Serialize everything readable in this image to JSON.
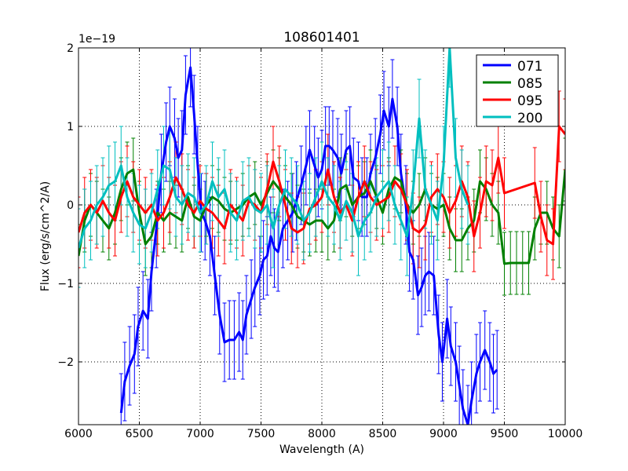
{
  "chart_data": {
    "type": "line",
    "title": "108601401",
    "xlabel": "Wavelength (A)",
    "ylabel": "Flux (erg/s/cm^2/A)",
    "offset_label": "1e−19",
    "xlim": [
      6000,
      10000
    ],
    "ylim": [
      -2.8,
      2.0
    ],
    "xticks": [
      6000,
      6500,
      7000,
      7500,
      8000,
      8500,
      9000,
      9500,
      10000
    ],
    "xtick_labels": [
      "6000",
      "6500",
      "7000",
      "7500",
      "8000",
      "8500",
      "9000",
      "9500",
      "10000"
    ],
    "yticks": [
      -2,
      -1,
      0,
      1,
      2
    ],
    "ytick_labels": [
      "−2",
      "−1",
      "0",
      "1",
      "2"
    ],
    "grid": true,
    "legend_position": "top-right",
    "series": [
      {
        "name": "071",
        "color": "#0000ff",
        "x": [
          6350,
          6380,
          6420,
          6460,
          6490,
          6530,
          6570,
          6600,
          6640,
          6680,
          6720,
          6750,
          6790,
          6820,
          6850,
          6880,
          6920,
          6950,
          6980,
          7010,
          7040,
          7080,
          7120,
          7160,
          7200,
          7240,
          7280,
          7320,
          7350,
          7380,
          7420,
          7450,
          7490,
          7520,
          7550,
          7580,
          7610,
          7640,
          7680,
          7720,
          7760,
          7790,
          7830,
          7870,
          7900,
          7940,
          7970,
          8000,
          8030,
          8060,
          8090,
          8130,
          8160,
          8200,
          8230,
          8260,
          8300,
          8330,
          8370,
          8400,
          8440,
          8480,
          8510,
          8550,
          8580,
          8620,
          8650,
          8690,
          8720,
          8750,
          8790,
          8820,
          8850,
          8880,
          8920,
          8960,
          8990,
          9030,
          9060,
          9100,
          9130,
          9160,
          9200,
          9230,
          9270,
          9300,
          9340,
          9380,
          9410,
          9440
        ],
        "y": [
          -2.65,
          -2.25,
          -2.05,
          -1.9,
          -1.55,
          -1.35,
          -1.45,
          -0.85,
          -0.3,
          0.4,
          0.8,
          1.0,
          0.85,
          0.6,
          0.7,
          1.4,
          1.75,
          1.15,
          0.5,
          -0.1,
          -0.2,
          -0.4,
          -0.9,
          -1.4,
          -1.75,
          -1.72,
          -1.72,
          -1.62,
          -1.72,
          -1.4,
          -1.2,
          -1.05,
          -0.9,
          -0.7,
          -0.65,
          -0.4,
          -0.55,
          -0.6,
          -0.3,
          -0.2,
          -0.1,
          0.05,
          0.25,
          0.5,
          0.7,
          0.5,
          0.35,
          0.45,
          0.75,
          0.75,
          0.7,
          0.6,
          0.4,
          0.7,
          0.75,
          0.35,
          0.3,
          0.1,
          0.1,
          0.4,
          0.6,
          0.9,
          1.2,
          1.0,
          1.35,
          1.0,
          0.4,
          0.0,
          -0.6,
          -0.7,
          -1.15,
          -1.05,
          -0.9,
          -0.85,
          -0.9,
          -1.65,
          -2.0,
          -1.45,
          -1.8,
          -2.0,
          -2.3,
          -2.6,
          -2.8,
          -2.5,
          -2.15,
          -2.0,
          -1.85,
          -2.0,
          -2.15,
          -2.1
        ],
        "err": 0.5
      },
      {
        "name": "085",
        "color": "#008000",
        "x": [
          6000,
          6050,
          6100,
          6150,
          6200,
          6250,
          6300,
          6350,
          6400,
          6450,
          6500,
          6550,
          6600,
          6650,
          6700,
          6750,
          6800,
          6850,
          6900,
          6950,
          7000,
          7050,
          7100,
          7150,
          7200,
          7250,
          7300,
          7350,
          7400,
          7450,
          7500,
          7550,
          7600,
          7650,
          7700,
          7750,
          7800,
          7850,
          7900,
          7950,
          8000,
          8050,
          8100,
          8150,
          8200,
          8250,
          8300,
          8350,
          8400,
          8450,
          8500,
          8550,
          8600,
          8650,
          8700,
          8750,
          8800,
          8850,
          8900,
          8950,
          9000,
          9050,
          9100,
          9150,
          9200,
          9250,
          9300,
          9350,
          9400,
          9450,
          9500,
          9550,
          9600,
          9650,
          9700,
          9750,
          9800,
          9850,
          9900,
          9950,
          10000
        ],
        "y": [
          -0.65,
          -0.2,
          0.0,
          -0.1,
          -0.2,
          -0.3,
          -0.1,
          0.2,
          0.4,
          0.45,
          -0.1,
          -0.5,
          -0.4,
          -0.1,
          -0.2,
          -0.1,
          -0.15,
          -0.2,
          0.1,
          -0.15,
          -0.2,
          0.0,
          0.1,
          0.05,
          -0.05,
          -0.1,
          -0.05,
          0.0,
          0.1,
          0.15,
          0.0,
          0.15,
          0.3,
          0.2,
          0.1,
          0.0,
          -0.15,
          -0.2,
          -0.25,
          -0.2,
          -0.2,
          -0.3,
          -0.2,
          0.2,
          0.25,
          0.0,
          0.1,
          0.15,
          0.3,
          0.1,
          -0.1,
          0.2,
          0.35,
          0.3,
          0.0,
          -0.1,
          0.0,
          0.2,
          0.0,
          -0.05,
          0.0,
          -0.3,
          -0.45,
          -0.45,
          -0.3,
          -0.2,
          0.3,
          0.2,
          0.0,
          -0.1,
          -0.75,
          -0.74,
          -0.74,
          -0.74,
          -0.74,
          -0.3,
          -0.1,
          -0.1,
          -0.3,
          -0.4,
          0.45
        ],
        "err": 0.4
      },
      {
        "name": "095",
        "color": "#ff0000",
        "x": [
          6000,
          6050,
          6100,
          6150,
          6200,
          6250,
          6300,
          6350,
          6400,
          6450,
          6500,
          6550,
          6600,
          6650,
          6700,
          6750,
          6800,
          6850,
          6900,
          6950,
          7000,
          7050,
          7100,
          7150,
          7200,
          7250,
          7300,
          7350,
          7400,
          7450,
          7500,
          7550,
          7600,
          7650,
          7700,
          7750,
          7800,
          7850,
          7900,
          7950,
          8000,
          8050,
          8100,
          8150,
          8200,
          8250,
          8300,
          8350,
          8400,
          8450,
          8500,
          8550,
          8600,
          8650,
          8700,
          8750,
          8800,
          8850,
          8900,
          8950,
          9000,
          9050,
          9100,
          9150,
          9200,
          9250,
          9300,
          9350,
          9400,
          9450,
          9500,
          9750,
          9800,
          9850,
          9900,
          9950,
          10000
        ],
        "y": [
          -0.35,
          -0.1,
          0.0,
          -0.1,
          0.05,
          -0.1,
          -0.2,
          0.1,
          0.3,
          0.1,
          0.0,
          -0.1,
          0.0,
          -0.2,
          -0.1,
          0.1,
          0.35,
          0.2,
          0.0,
          -0.1,
          0.05,
          -0.05,
          -0.1,
          -0.2,
          -0.3,
          0.0,
          -0.1,
          -0.2,
          0.05,
          0.0,
          -0.1,
          0.2,
          0.55,
          0.3,
          0.0,
          -0.3,
          -0.35,
          -0.3,
          -0.05,
          0.0,
          0.1,
          0.45,
          0.1,
          -0.1,
          0.0,
          -0.2,
          0.1,
          0.3,
          0.1,
          0.0,
          0.05,
          0.1,
          0.3,
          0.2,
          0.0,
          -0.3,
          -0.35,
          -0.25,
          0.1,
          0.2,
          0.1,
          -0.1,
          0.05,
          0.3,
          0.1,
          -0.4,
          -0.1,
          0.3,
          0.25,
          0.6,
          0.15,
          0.28,
          -0.15,
          -0.45,
          -0.5,
          1.0,
          0.9
        ],
        "err": 0.45
      },
      {
        "name": "200",
        "color": "#00bfbf",
        "x": [
          6000,
          6050,
          6100,
          6150,
          6200,
          6250,
          6300,
          6350,
          6400,
          6450,
          6500,
          6550,
          6600,
          6650,
          6700,
          6750,
          6800,
          6850,
          6900,
          6950,
          7000,
          7050,
          7100,
          7150,
          7200,
          7250,
          7300,
          7350,
          7400,
          7450,
          7500,
          7550,
          7600,
          7650,
          7700,
          7750,
          7800,
          7850,
          7900,
          7950,
          8000,
          8050,
          8100,
          8150,
          8200,
          8250,
          8300,
          8350,
          8400,
          8450,
          8500,
          8550,
          8600,
          8650,
          8700,
          8750,
          8800,
          8850,
          8900,
          8950,
          9000,
          9050,
          9100,
          9150,
          9200
        ],
        "y": [
          -0.55,
          -0.3,
          -0.2,
          0.0,
          0.1,
          0.25,
          0.3,
          0.5,
          0.1,
          -0.1,
          -0.25,
          -0.3,
          -0.1,
          0.2,
          0.5,
          0.45,
          0.1,
          0.0,
          0.15,
          0.1,
          -0.1,
          0.0,
          0.3,
          0.1,
          0.2,
          -0.1,
          -0.2,
          0.05,
          0.1,
          -0.05,
          -0.1,
          0.0,
          -0.3,
          0.0,
          0.2,
          0.1,
          0.0,
          -0.2,
          -0.1,
          0.1,
          0.3,
          0.1,
          0.0,
          -0.2,
          0.05,
          -0.1,
          -0.4,
          -0.2,
          -0.1,
          0.1,
          0.2,
          0.3,
          0.0,
          -0.2,
          -0.4,
          0.2,
          1.1,
          0.2,
          0.0,
          -0.2,
          0.5,
          2.0,
          0.6,
          0.2,
          0.0
        ],
        "err": 0.5
      }
    ]
  }
}
